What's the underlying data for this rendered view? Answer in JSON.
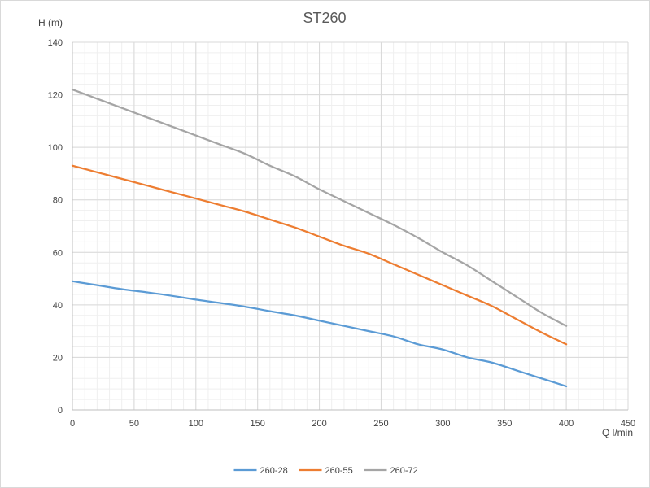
{
  "chart_data": {
    "type": "line",
    "title": "ST260",
    "ylabel": "H (m)",
    "xlabel": "Q l/min",
    "xlim": [
      0,
      450
    ],
    "ylim": [
      0,
      140
    ],
    "xticks": [
      0,
      50,
      100,
      150,
      200,
      250,
      300,
      350,
      400,
      450
    ],
    "yticks": [
      0,
      20,
      40,
      60,
      80,
      100,
      120,
      140
    ],
    "grid": true,
    "minor_grid": true,
    "legend_position": "bottom",
    "series": [
      {
        "name": "260-28",
        "color": "#5b9bd5",
        "x": [
          0,
          20,
          40,
          60,
          80,
          100,
          120,
          140,
          160,
          180,
          200,
          220,
          240,
          260,
          280,
          300,
          320,
          340,
          360,
          380,
          400
        ],
        "y": [
          49,
          47.5,
          46,
          44.8,
          43.5,
          42,
          40.7,
          39.3,
          37.6,
          36,
          34,
          32,
          30,
          28,
          25,
          23,
          20,
          18,
          15,
          12,
          9
        ]
      },
      {
        "name": "260-55",
        "color": "#ed7d31",
        "x": [
          0,
          20,
          40,
          60,
          80,
          100,
          120,
          140,
          160,
          180,
          200,
          220,
          240,
          260,
          280,
          300,
          320,
          340,
          360,
          380,
          400
        ],
        "y": [
          93,
          90.5,
          88,
          85.5,
          83,
          80.5,
          78,
          75.5,
          72.5,
          69.5,
          66,
          62.5,
          59.5,
          55.5,
          51.5,
          47.5,
          43.5,
          39.5,
          34.5,
          29.5,
          25
        ]
      },
      {
        "name": "260-72",
        "color": "#a5a5a5",
        "x": [
          0,
          20,
          40,
          60,
          80,
          100,
          120,
          140,
          160,
          180,
          200,
          220,
          240,
          260,
          280,
          300,
          320,
          340,
          360,
          380,
          400
        ],
        "y": [
          122,
          118.5,
          115,
          111.5,
          108,
          104.5,
          101,
          97.5,
          93,
          89,
          84,
          79.5,
          75,
          70.5,
          65.5,
          60,
          55,
          49,
          43,
          37,
          32
        ]
      }
    ]
  }
}
